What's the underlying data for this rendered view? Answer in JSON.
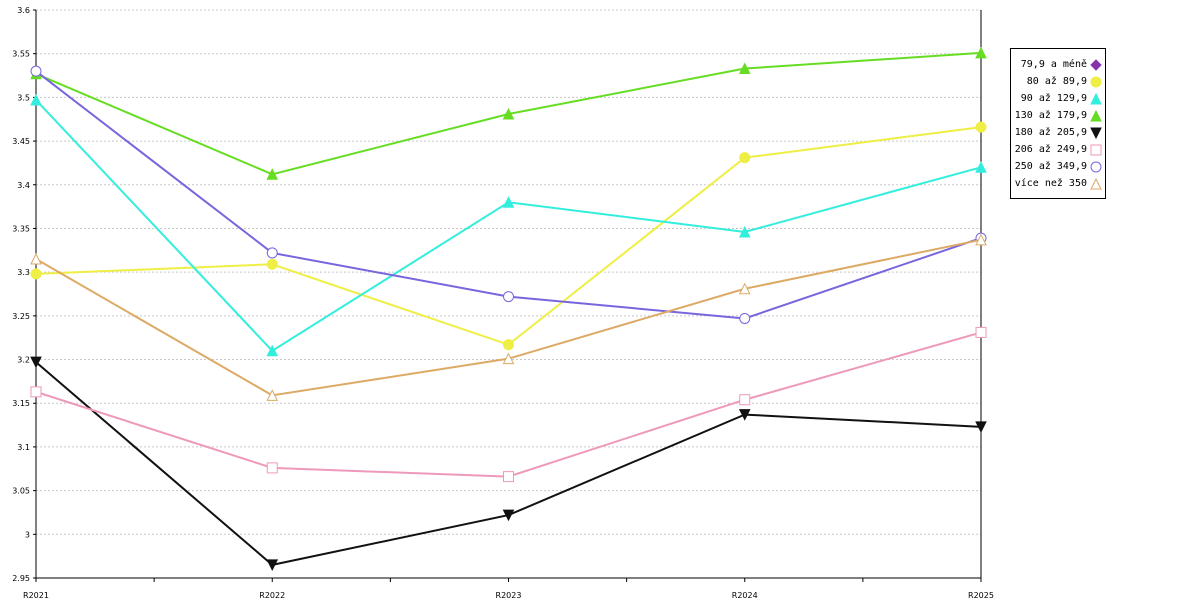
{
  "chart_data": {
    "type": "line",
    "categories": [
      "R2021",
      "R2022",
      "R2023",
      "R2024",
      "R2025"
    ],
    "ylim": [
      2.95,
      3.6
    ],
    "y_ticks": [
      "2.95",
      "3",
      "3.05",
      "3.1",
      "3.15",
      "3.2",
      "3.25",
      "3.3",
      "3.35",
      "3.4",
      "3.45",
      "3.5",
      "3.55",
      "3.6"
    ],
    "grid": true,
    "legend_position": "right",
    "series": [
      {
        "name": "79,9 a méně",
        "color": "#8833aa",
        "marker": "diamond-filled",
        "values": [
          null,
          null,
          null,
          null,
          null
        ]
      },
      {
        "name": "80 až 89,9",
        "color": "#eeee44",
        "marker": "circle-filled",
        "values": [
          3.298,
          3.309,
          3.217,
          3.431,
          3.466
        ]
      },
      {
        "name": "90 až 129,9",
        "color": "#33eedd",
        "marker": "triangle-up-filled",
        "values": [
          3.497,
          3.21,
          3.38,
          3.346,
          3.42
        ]
      },
      {
        "name": "130 až 179,9",
        "color": "#66dd22",
        "marker": "triangle-up-filled",
        "values": [
          3.527,
          3.412,
          3.481,
          3.533,
          3.551
        ]
      },
      {
        "name": "180 až 205,9",
        "color": "#111111",
        "marker": "triangle-down-filled",
        "values": [
          3.197,
          2.965,
          3.022,
          3.137,
          3.123
        ]
      },
      {
        "name": "206 až 249,9",
        "color": "#ee99bb",
        "marker": "square-open",
        "values": [
          3.163,
          3.076,
          3.066,
          3.154,
          3.231
        ]
      },
      {
        "name": "250 až 349,9",
        "color": "#7766dd",
        "marker": "circle-open",
        "values": [
          3.53,
          3.322,
          3.272,
          3.247,
          3.339
        ]
      },
      {
        "name": "více než 350",
        "color": "#ddaa66",
        "marker": "triangle-up-open",
        "values": [
          3.315,
          3.159,
          3.201,
          3.281,
          3.337
        ]
      }
    ]
  }
}
